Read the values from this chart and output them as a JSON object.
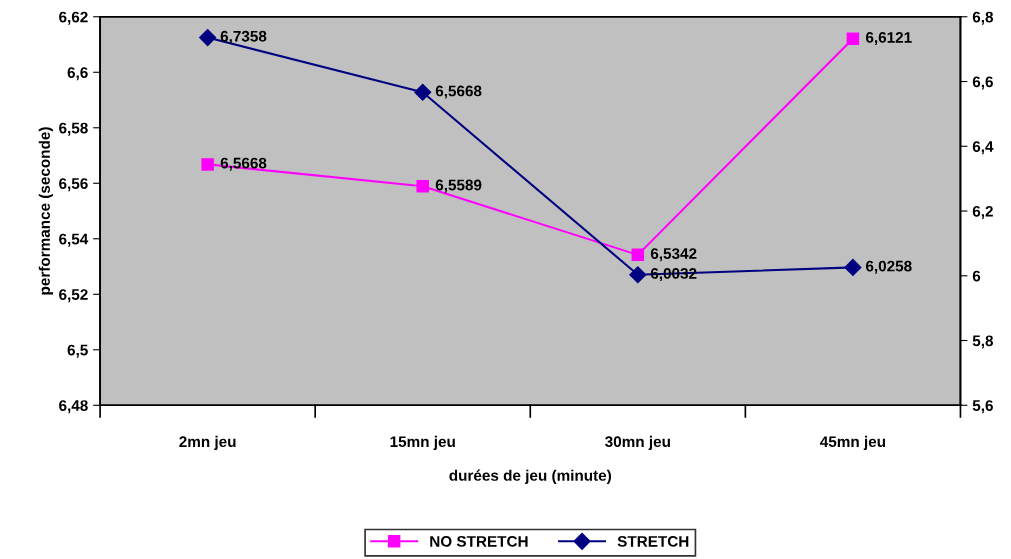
{
  "chart_data": {
    "type": "line",
    "xlabel": "durées de jeu (minute)",
    "ylabel": "performance (seconde)",
    "categories": [
      "2mn jeu",
      "15mn jeu",
      "30mn jeu",
      "45mn jeu"
    ],
    "series": [
      {
        "name": "NO STRETCH",
        "color": "#ff00ff",
        "marker": "square",
        "values": [
          6.5668,
          6.5589,
          6.5342,
          6.6121
        ],
        "value_labels": [
          "6,5668",
          "6,5589",
          "6,5342",
          "6,6121"
        ]
      },
      {
        "name": "STRETCH",
        "color": "#000080",
        "marker": "diamond",
        "axis": "y2",
        "values": [
          6.7358,
          6.5668,
          6.0032,
          6.0258
        ],
        "value_labels": [
          "6,7358",
          "6,5668",
          "6,0032",
          "6,0258"
        ]
      }
    ],
    "ylim": [
      6.48,
      6.62
    ],
    "yticks": [
      {
        "value": 6.48,
        "label": "6,48"
      },
      {
        "value": 6.5,
        "label": "6,5"
      },
      {
        "value": 6.52,
        "label": "6,52"
      },
      {
        "value": 6.54,
        "label": "6,54"
      },
      {
        "value": 6.56,
        "label": "6,56"
      },
      {
        "value": 6.58,
        "label": "6,58"
      },
      {
        "value": 6.6,
        "label": "6,6"
      },
      {
        "value": 6.62,
        "label": "6,62"
      }
    ],
    "y2lim": [
      5.6,
      6.8
    ],
    "y2ticks": [
      {
        "value": 5.6,
        "label": "5,6"
      },
      {
        "value": 5.8,
        "label": "5,8"
      },
      6,
      {
        "value": 6.2,
        "label": "6,2"
      },
      {
        "value": 6.4,
        "label": "6,4"
      },
      {
        "value": 6.6,
        "label": "6,6"
      },
      {
        "value": 6.8,
        "label": "6,8"
      }
    ],
    "grid": false,
    "legend": "bottom",
    "line_style": "solid"
  }
}
